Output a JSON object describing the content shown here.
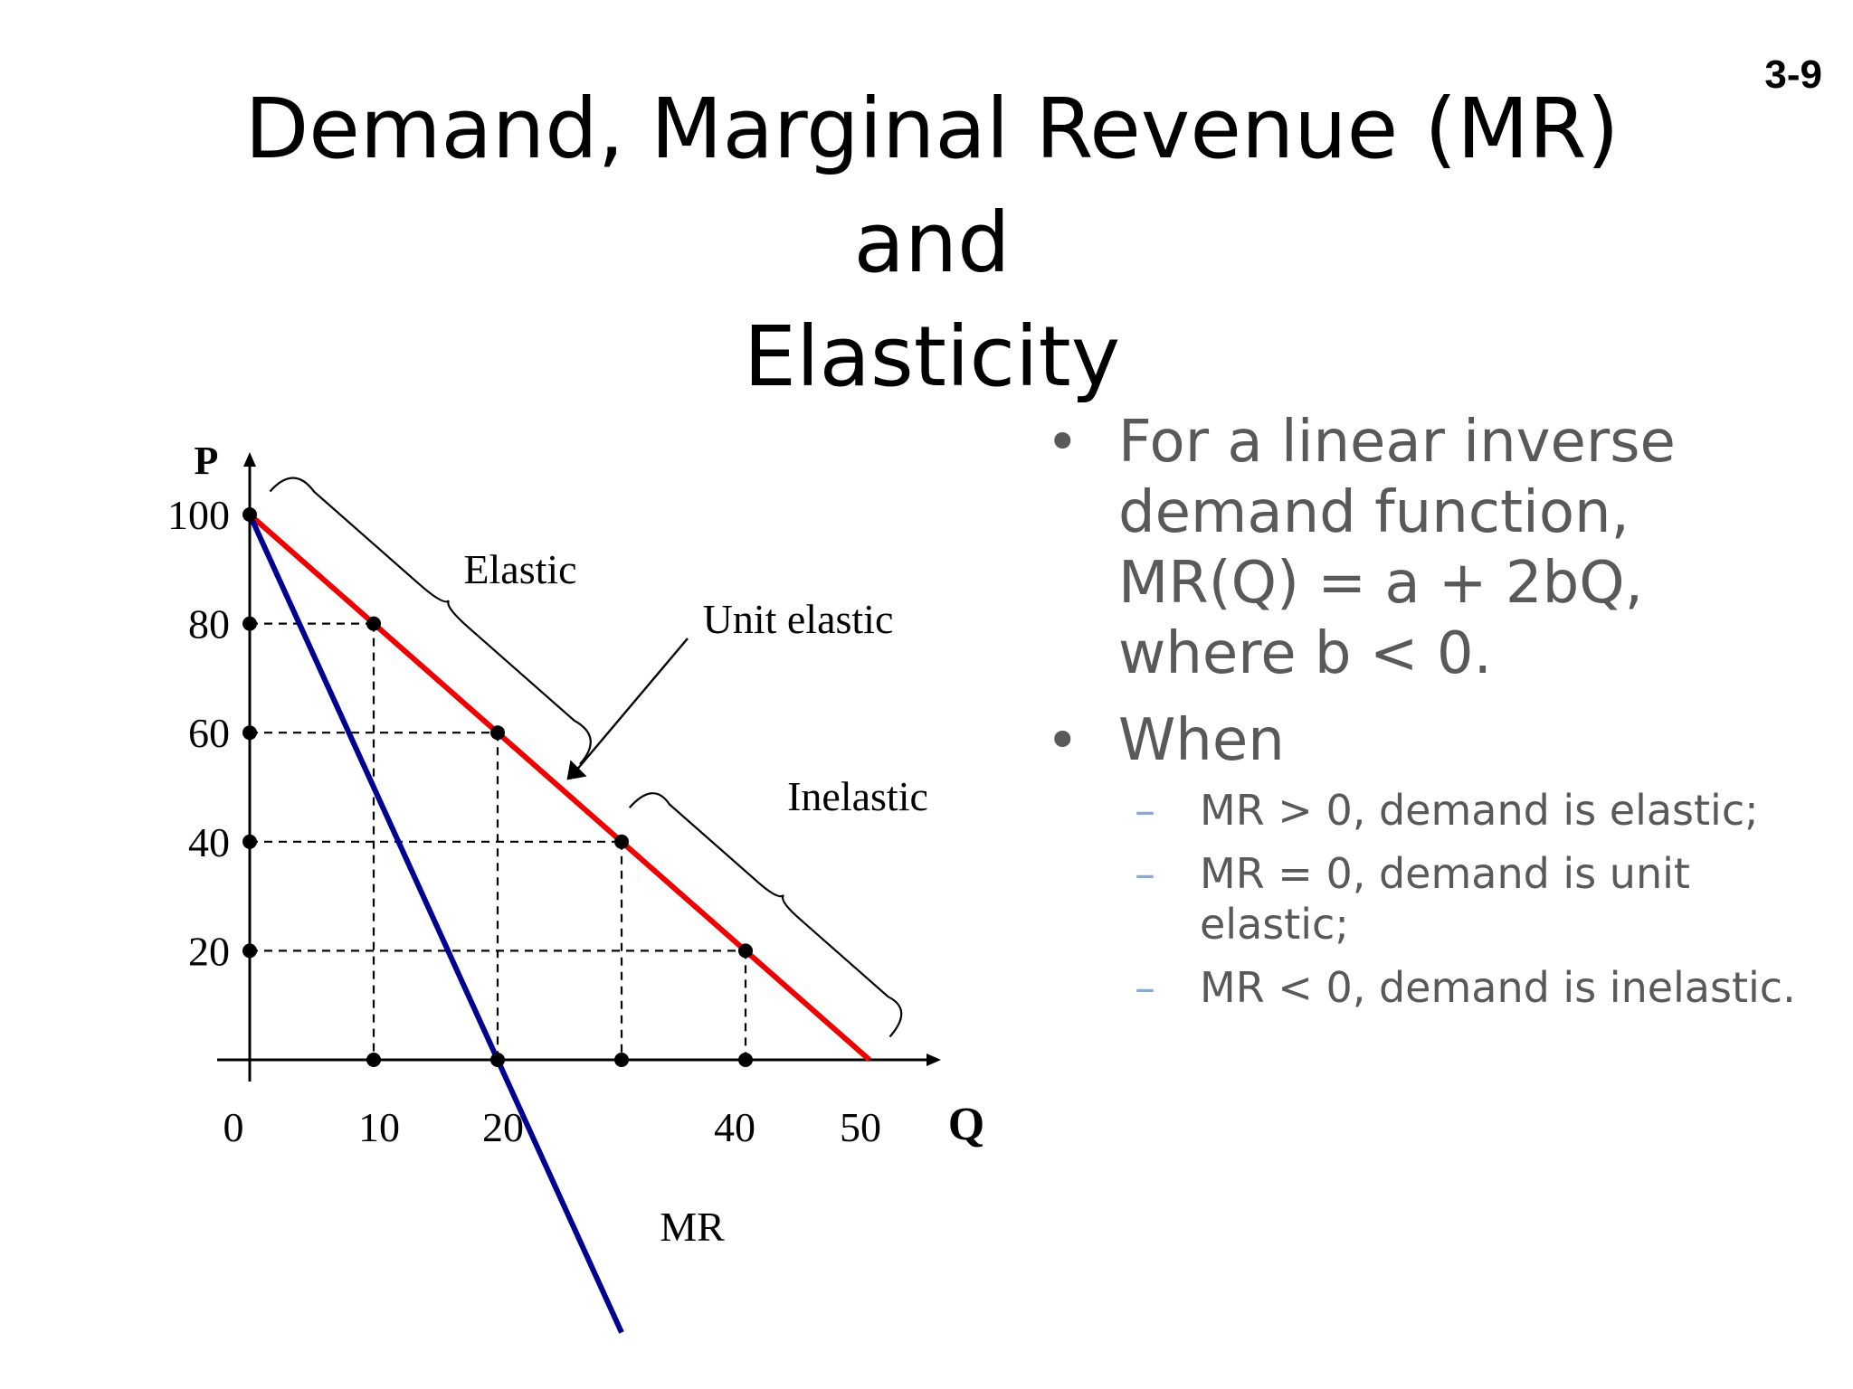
{
  "slide_number": "3-9",
  "title": [
    "Demand, Marginal Revenue (MR) and",
    "Elasticity"
  ],
  "bullets": [
    {
      "text": "For a linear inverse demand function, MR(Q) = a + 2bQ, where b < 0."
    },
    {
      "text": "When",
      "subs": [
        "MR > 0, demand is elastic;",
        "MR = 0, demand is unit elastic;",
        "MR < 0, demand is inelastic."
      ]
    }
  ],
  "colors": {
    "demand": "#ee0000",
    "mr": "#000090",
    "text_gray": "#595959",
    "dash_blue": "#8ea9cf"
  },
  "chart_data": {
    "type": "line",
    "x_axis_label": "Q",
    "y_axis_label": "P",
    "x_tick_labels": [
      {
        "value": 0,
        "label": "0"
      },
      {
        "value": 10,
        "label": "10"
      },
      {
        "value": 20,
        "label": "20"
      },
      {
        "value": 40,
        "label": "40"
      },
      {
        "value": 50,
        "label": "50"
      }
    ],
    "y_tick_labels": [
      {
        "value": 100,
        "label": "100"
      },
      {
        "value": 80,
        "label": "80"
      },
      {
        "value": 60,
        "label": "60"
      },
      {
        "value": 40,
        "label": "40"
      },
      {
        "value": 20,
        "label": "20"
      }
    ],
    "xlim": [
      0,
      55
    ],
    "ylim": [
      -50,
      100
    ],
    "series": [
      {
        "id": "demand",
        "color": "#ee0000",
        "x": [
          0,
          50
        ],
        "y": [
          100,
          0
        ]
      },
      {
        "id": "mr",
        "name": "MR",
        "color": "#000090",
        "x": [
          0,
          30
        ],
        "y": [
          100,
          -50
        ]
      }
    ],
    "points": [
      {
        "x": 10,
        "y": 80
      },
      {
        "x": 20,
        "y": 60
      },
      {
        "x": 30,
        "y": 40
      },
      {
        "x": 40,
        "y": 20
      }
    ],
    "annotations": [
      "Elastic",
      "Unit elastic",
      "Inelastic"
    ],
    "elastic_range": [
      0,
      25
    ],
    "inelastic_range": [
      29,
      50
    ],
    "unit_elastic_point": {
      "x": 25,
      "y": 50
    }
  }
}
